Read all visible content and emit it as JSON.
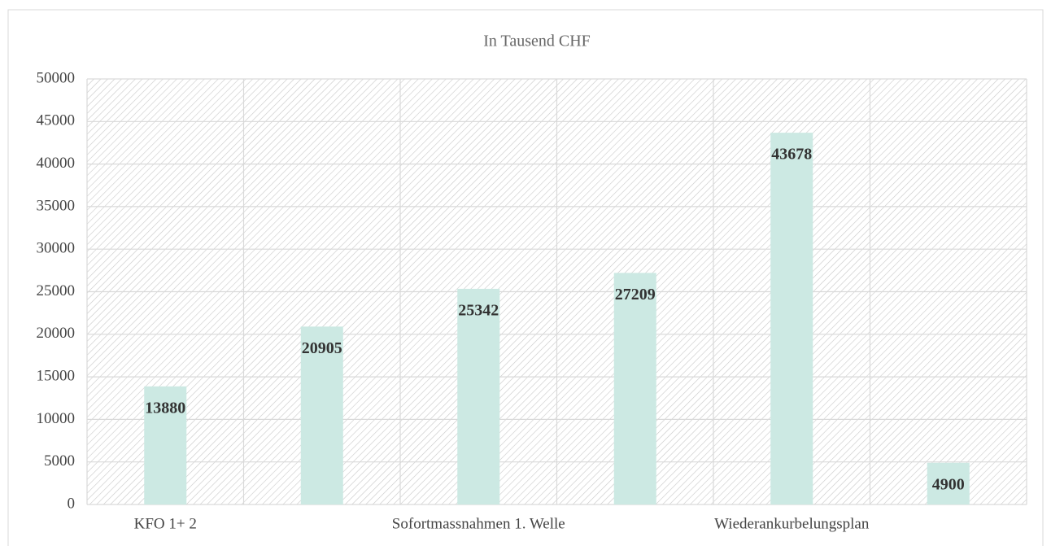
{
  "chart_data": {
    "type": "bar",
    "title": "In Tausend CHF",
    "categories": [
      "KFO 1+ 2",
      null,
      "Sofortmassnahmen 1. Welle",
      null,
      "Wiederankurbelungsplan",
      null
    ],
    "values": [
      13880,
      20905,
      25342,
      27209,
      43678,
      4900
    ],
    "color": "#cce9e3",
    "ylim": [
      0,
      50000
    ],
    "yticks": [
      0,
      5000,
      10000,
      15000,
      20000,
      25000,
      30000,
      35000,
      40000,
      45000,
      50000
    ],
    "grid": true
  }
}
